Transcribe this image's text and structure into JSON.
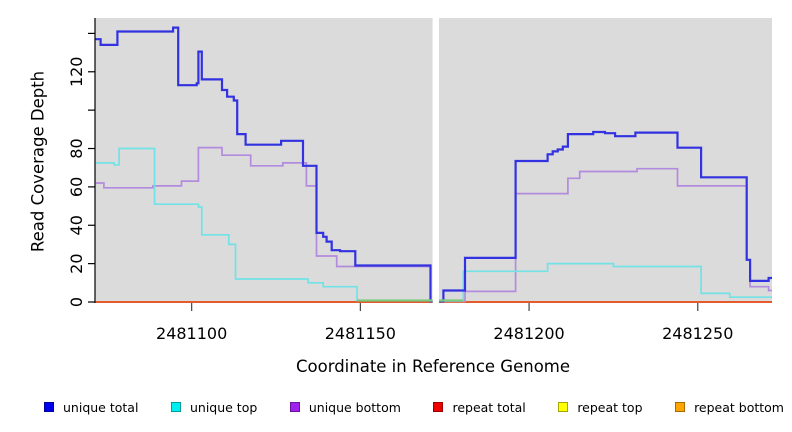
{
  "y_axis": {
    "label": "Read Coverage Depth",
    "ticks": [
      0,
      20,
      40,
      60,
      80,
      100,
      120,
      140
    ],
    "labeled_ticks": [
      0,
      20,
      40,
      60,
      80,
      120
    ],
    "range": [
      0,
      148
    ]
  },
  "x_axis": {
    "label": "Coordinate in Reference Genome",
    "ticks": [
      2481100,
      2481150,
      2481200,
      2481250
    ],
    "min": 2481071.5,
    "max": 2481272,
    "gap": [
      2481171.4,
      2481173.3
    ]
  },
  "panel_color": "#dbdbdb",
  "legend": [
    {
      "label": "unique total",
      "color": "#0000ee"
    },
    {
      "label": "unique top",
      "color": "#00eeee"
    },
    {
      "label": "unique bottom",
      "color": "#a020f0"
    },
    {
      "label": "repeat total",
      "color": "#ee0000"
    },
    {
      "label": "repeat top",
      "color": "#ffff00"
    },
    {
      "label": "repeat bottom",
      "color": "#ffa500"
    }
  ],
  "chart_data": {
    "type": "line",
    "style": "step-coverage",
    "xlabel": "Coordinate in Reference Genome",
    "ylabel": "Read Coverage Depth",
    "xlim": [
      2481071.5,
      2481272
    ],
    "ylim": [
      0,
      148
    ],
    "no_data_gap": [
      2481171.4,
      2481173.3
    ],
    "series": [
      {
        "name": "repeat bottom",
        "color": "#ffa500",
        "width": 1.8,
        "segments": [
          {
            "points": [
              [
                2481071.5,
                0
              ]
            ],
            "end": 2481171.4
          },
          {
            "points": [
              [
                2481173.3,
                0
              ]
            ],
            "end": 2481272
          }
        ]
      },
      {
        "name": "repeat top",
        "color": "#f5f500",
        "width": 1.5,
        "segments": [
          {
            "points": [
              [
                2481071.5,
                0
              ]
            ],
            "end": 2481171.4
          },
          {
            "points": [
              [
                2481173.3,
                0
              ]
            ],
            "end": 2481272
          }
        ]
      },
      {
        "name": "repeat total",
        "color": "#e03333",
        "width": 1.5,
        "segments": [
          {
            "points": [
              [
                2481071.5,
                0
              ]
            ],
            "end": 2481171.4
          },
          {
            "points": [
              [
                2481173.3,
                0
              ]
            ],
            "end": 2481272
          }
        ]
      },
      {
        "name": "unique bottom",
        "color": "#b38bde",
        "width": 1.7,
        "segments": [
          {
            "points": [
              [
                2481071.5,
                62
              ],
              [
                2481074,
                59.5
              ],
              [
                2481088.5,
                60.5
              ],
              [
                2481097,
                63
              ],
              [
                2481102,
                80.5
              ],
              [
                2481109,
                76.5
              ],
              [
                2481117.5,
                71
              ],
              [
                2481127,
                72.5
              ],
              [
                2481134,
                60.5
              ],
              [
                2481137,
                24
              ],
              [
                2481143,
                18.5
              ],
              [
                2481170.8,
                0.3
              ]
            ],
            "end": 2481171.4
          },
          {
            "points": [
              [
                2481173.3,
                0.3
              ],
              [
                2481181,
                5.5
              ],
              [
                2481196,
                56.5
              ],
              [
                2481211.5,
                64.5
              ],
              [
                2481215,
                68
              ],
              [
                2481232,
                69.5
              ],
              [
                2481244,
                60.5
              ],
              [
                2481264.5,
                22
              ],
              [
                2481265.5,
                8
              ],
              [
                2481271,
                6
              ]
            ],
            "end": 2481272
          }
        ]
      },
      {
        "name": "unique top",
        "color": "#72e2e6",
        "width": 1.7,
        "segments": [
          {
            "points": [
              [
                2481071.5,
                72.5
              ],
              [
                2481077,
                71.5
              ],
              [
                2481078.5,
                80
              ],
              [
                2481089,
                51
              ],
              [
                2481102,
                49.5
              ],
              [
                2481103,
                35
              ],
              [
                2481111,
                30
              ],
              [
                2481113,
                12
              ],
              [
                2481134.5,
                10
              ],
              [
                2481139,
                8
              ],
              [
                2481149,
                0.8
              ]
            ],
            "end": 2481171.4
          },
          {
            "points": [
              [
                2481173.3,
                0.8
              ],
              [
                2481180.5,
                16
              ],
              [
                2481205.5,
                20
              ],
              [
                2481225,
                18.5
              ],
              [
                2481251,
                4.5
              ],
              [
                2481259.5,
                2.5
              ]
            ],
            "end": 2481272
          }
        ]
      },
      {
        "name": "unique total",
        "color": "#3232e0",
        "width": 2.2,
        "segments": [
          {
            "points": [
              [
                2481071.5,
                137
              ],
              [
                2481073,
                134
              ],
              [
                2481078,
                141
              ],
              [
                2481094.5,
                143
              ],
              [
                2481096,
                113
              ],
              [
                2481101.5,
                114
              ],
              [
                2481102,
                130.5
              ],
              [
                2481103,
                116
              ],
              [
                2481109,
                110.5
              ],
              [
                2481110.5,
                107
              ],
              [
                2481112.5,
                105
              ],
              [
                2481113.5,
                87.5
              ],
              [
                2481116,
                82
              ],
              [
                2481126.5,
                84
              ],
              [
                2481133,
                71
              ],
              [
                2481137,
                36
              ],
              [
                2481139,
                34
              ],
              [
                2481140,
                31.5
              ],
              [
                2481141.5,
                27
              ],
              [
                2481144,
                26.5
              ],
              [
                2481148.5,
                19
              ],
              [
                2481170.8,
                0.3
              ]
            ],
            "end": 2481171.4
          },
          {
            "points": [
              [
                2481173.3,
                0.3
              ],
              [
                2481174.6,
                6
              ],
              [
                2481181,
                23
              ],
              [
                2481196,
                73.5
              ],
              [
                2481205.5,
                77
              ],
              [
                2481207,
                78.5
              ],
              [
                2481208.5,
                79.5
              ],
              [
                2481210,
                81
              ],
              [
                2481211.5,
                87.5
              ],
              [
                2481219,
                88.6
              ],
              [
                2481222.5,
                88
              ],
              [
                2481225.5,
                86.4
              ],
              [
                2481231.5,
                88.3
              ],
              [
                2481244,
                80.4
              ],
              [
                2481251,
                65
              ],
              [
                2481264.5,
                22
              ],
              [
                2481265.5,
                11
              ],
              [
                2481271,
                12.5
              ]
            ],
            "end": 2481272
          }
        ]
      }
    ],
    "overlap_blend_segments": [
      {
        "x1": 2481149,
        "x2": 2481171.4,
        "value": 0.8,
        "color": "#7ccb7c",
        "note": "unique top line blended over repeat bottom renders green"
      },
      {
        "x1": 2481173.3,
        "x2": 2481180.5,
        "value": 0.8,
        "color": "#7ccb7c",
        "note": "unique top line blended over repeat bottom renders green"
      }
    ]
  }
}
